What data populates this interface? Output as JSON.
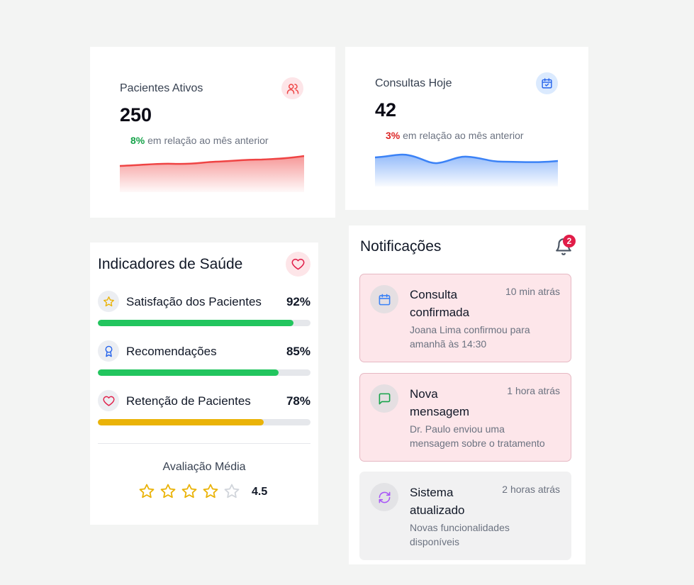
{
  "stats": [
    {
      "title": "Pacientes Ativos",
      "value": "250",
      "change_pct": "8%",
      "change_text": "em relação ao mês anterior",
      "change_color": "#16a34a",
      "icon": "users-icon",
      "accent": "#ef4444"
    },
    {
      "title": "Consultas Hoje",
      "value": "42",
      "change_pct": "3%",
      "change_text": "em relação ao mês anterior",
      "change_color": "#dc2626",
      "icon": "calendar-check-icon",
      "accent": "#3b82f6"
    }
  ],
  "health": {
    "title": "Indicadores de Saúde",
    "metrics": [
      {
        "label": "Satisfação dos Pacientes",
        "value": "92%",
        "fill": 0.92,
        "color": "#22c55e",
        "icon": "star-icon"
      },
      {
        "label": "Recomendações",
        "value": "85%",
        "fill": 0.85,
        "color": "#22c55e",
        "icon": "award-icon"
      },
      {
        "label": "Retenção de Pacientes",
        "value": "78%",
        "fill": 0.78,
        "color": "#eab308",
        "icon": "heart-icon"
      }
    ],
    "rating_label": "Avaliação Média",
    "rating_value": "4.5",
    "rating_stars_filled": 4,
    "rating_stars_total": 5
  },
  "notifications": {
    "title": "Notificações",
    "badge_count": "2",
    "items": [
      {
        "title": "Consulta confirmada",
        "time": "10 min atrás",
        "body": "Joana Lima confirmou para amanhã às 14:30",
        "icon": "calendar-icon",
        "unread": true
      },
      {
        "title": "Nova mensagem",
        "time": "1 hora atrás",
        "body": "Dr. Paulo enviou uma mensagem sobre o tratamento",
        "icon": "message-icon",
        "unread": true
      },
      {
        "title": "Sistema atualizado",
        "time": "2 horas atrás",
        "body": "Novas funcionalidades disponíveis",
        "icon": "refresh-icon",
        "unread": false
      }
    ]
  }
}
